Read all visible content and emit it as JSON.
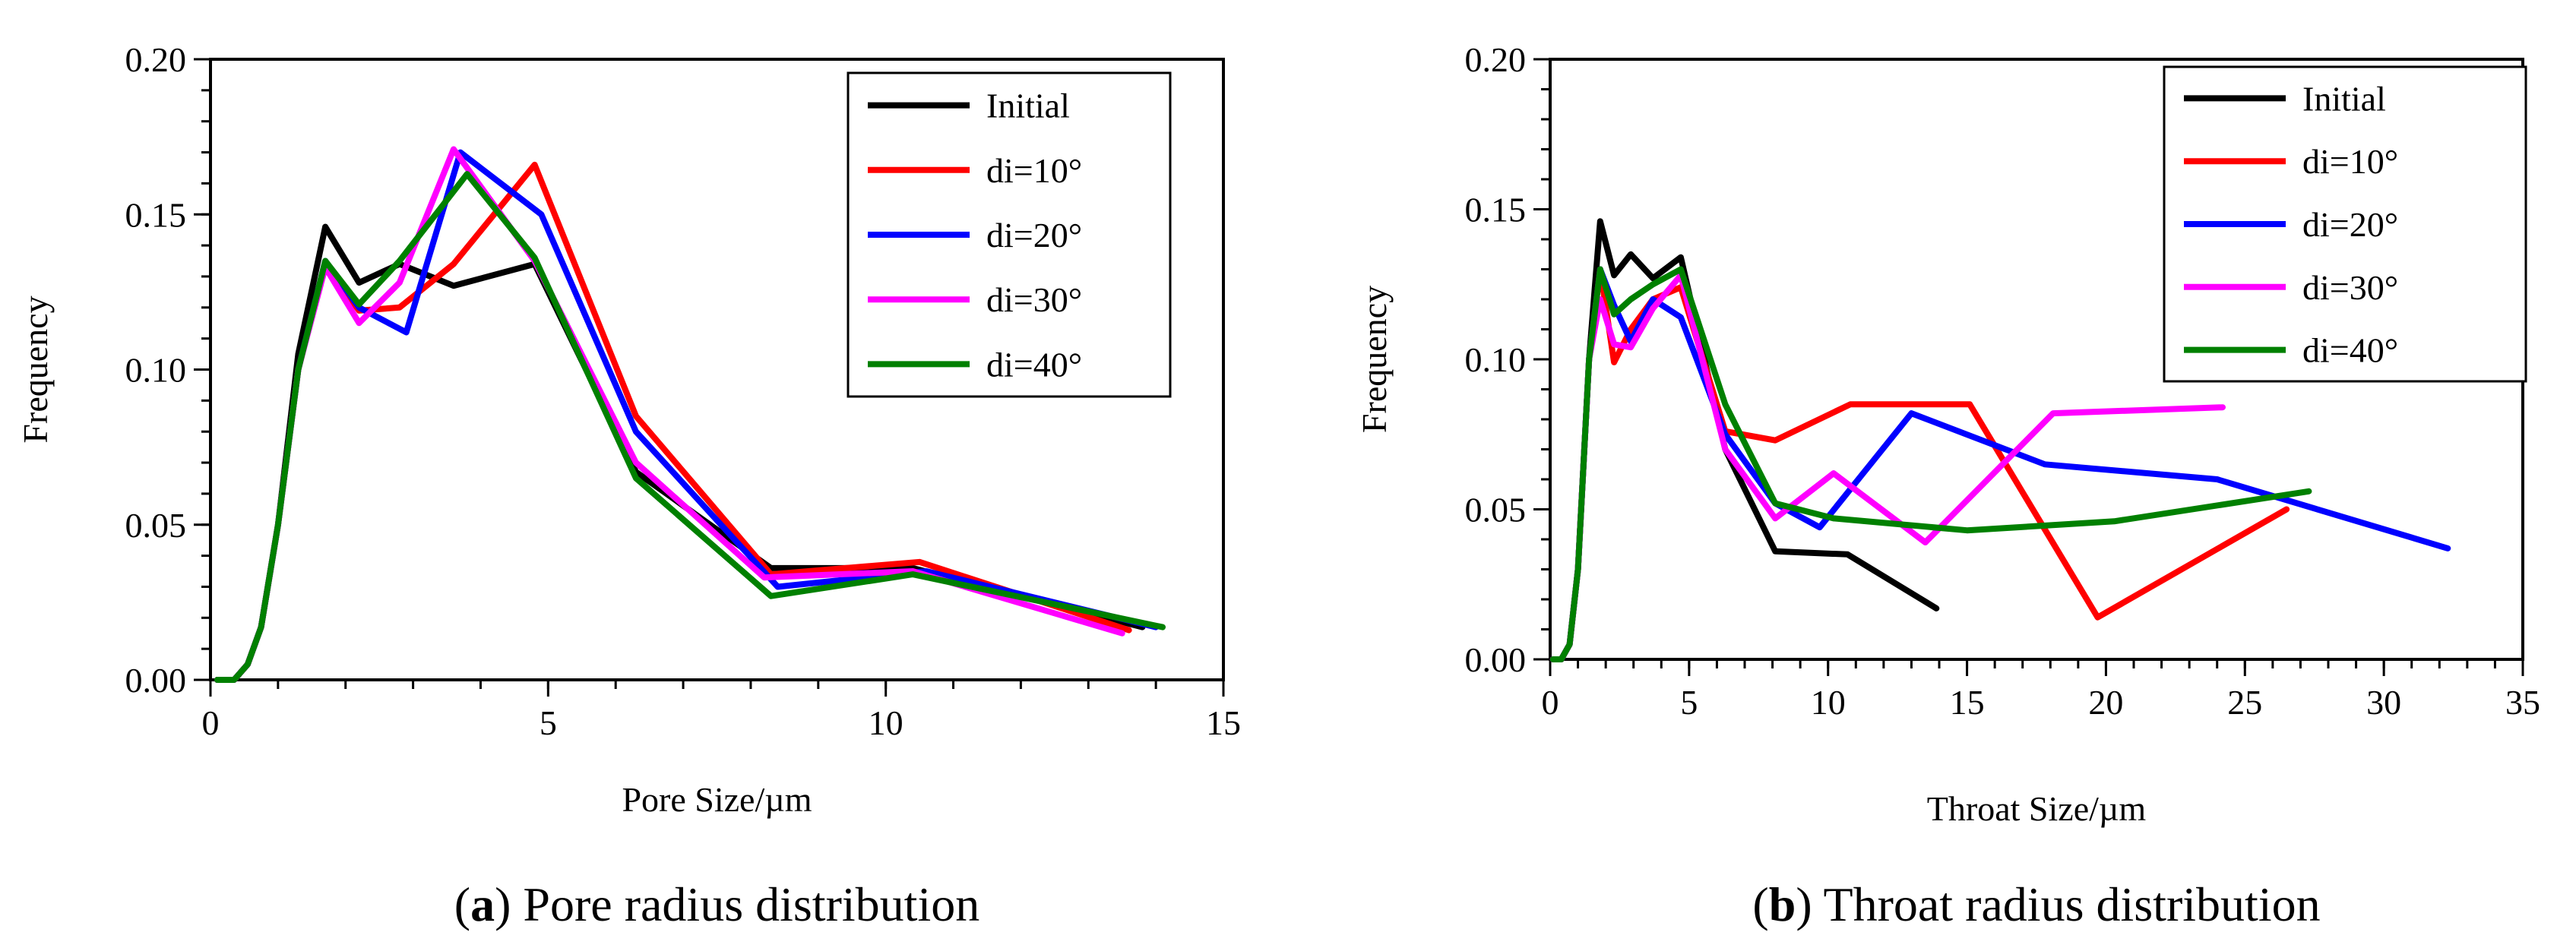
{
  "chart_data": [
    {
      "type": "line",
      "panel": "a",
      "caption_letter": "a",
      "caption_text": " Pore radius distribution",
      "xlabel": "Pore Size/µm",
      "ylabel": "Frequency",
      "xlim": [
        0,
        15
      ],
      "ylim": [
        0,
        0.2
      ],
      "xticks": [
        "0",
        "5",
        "10",
        "15"
      ],
      "yticks": [
        "0.00",
        "0.05",
        "0.10",
        "0.15",
        "0.20"
      ],
      "legend_position": "top-right",
      "series": [
        {
          "name": "Initial",
          "color": "#000000",
          "x": [
            0.1,
            0.35,
            0.55,
            0.75,
            1.0,
            1.3,
            1.7,
            2.2,
            2.8,
            3.6,
            4.8,
            6.3,
            8.3,
            10.4,
            13.8
          ],
          "y": [
            0.0,
            0.0,
            0.005,
            0.017,
            0.05,
            0.105,
            0.146,
            0.128,
            0.134,
            0.127,
            0.134,
            0.067,
            0.036,
            0.036,
            0.017
          ]
        },
        {
          "name": "di=10°",
          "color": "#ff0000",
          "x": [
            0.1,
            0.35,
            0.55,
            0.75,
            1.0,
            1.3,
            1.7,
            2.2,
            2.8,
            3.6,
            4.8,
            6.3,
            8.3,
            10.5,
            13.6
          ],
          "y": [
            0.0,
            0.0,
            0.005,
            0.017,
            0.05,
            0.1,
            0.134,
            0.119,
            0.12,
            0.134,
            0.166,
            0.085,
            0.034,
            0.038,
            0.016
          ]
        },
        {
          "name": "di=20°",
          "color": "#0000ff",
          "x": [
            0.1,
            0.35,
            0.55,
            0.75,
            1.0,
            1.3,
            1.7,
            2.2,
            2.9,
            3.7,
            4.9,
            6.3,
            8.4,
            10.6,
            14.0
          ],
          "y": [
            0.0,
            0.0,
            0.005,
            0.017,
            0.05,
            0.1,
            0.135,
            0.12,
            0.112,
            0.17,
            0.15,
            0.08,
            0.03,
            0.035,
            0.017
          ]
        },
        {
          "name": "di=30°",
          "color": "#ff00ff",
          "x": [
            0.1,
            0.35,
            0.55,
            0.75,
            1.0,
            1.3,
            1.7,
            2.2,
            2.8,
            3.6,
            4.8,
            6.3,
            8.2,
            10.4,
            13.5
          ],
          "y": [
            0.0,
            0.0,
            0.005,
            0.017,
            0.05,
            0.1,
            0.133,
            0.115,
            0.128,
            0.171,
            0.135,
            0.07,
            0.033,
            0.035,
            0.015
          ]
        },
        {
          "name": "di=40°",
          "color": "#008000",
          "x": [
            0.1,
            0.35,
            0.55,
            0.75,
            1.0,
            1.3,
            1.7,
            2.2,
            2.8,
            3.8,
            4.8,
            6.3,
            8.3,
            10.4,
            14.1
          ],
          "y": [
            0.0,
            0.0,
            0.005,
            0.017,
            0.05,
            0.1,
            0.135,
            0.121,
            0.135,
            0.163,
            0.136,
            0.065,
            0.027,
            0.034,
            0.017
          ]
        }
      ]
    },
    {
      "type": "line",
      "panel": "b",
      "caption_letter": "b",
      "caption_text": " Throat radius distribution",
      "xlabel": "Throat Size/µm",
      "ylabel": "Frequency",
      "xlim": [
        0,
        35
      ],
      "ylim": [
        0,
        0.2
      ],
      "xticks": [
        "0",
        "5",
        "10",
        "15",
        "20",
        "25",
        "30",
        "35"
      ],
      "yticks": [
        "0.00",
        "0.05",
        "0.10",
        "0.15",
        "0.20"
      ],
      "legend_position": "top-right",
      "series": [
        {
          "name": "Initial",
          "color": "#000000",
          "x": [
            0.1,
            0.4,
            0.7,
            1.0,
            1.4,
            1.8,
            2.3,
            2.9,
            3.7,
            4.7,
            6.3,
            8.1,
            10.7,
            13.9
          ],
          "y": [
            0.0,
            0.0,
            0.005,
            0.03,
            0.1,
            0.146,
            0.128,
            0.135,
            0.127,
            0.134,
            0.07,
            0.036,
            0.035,
            0.017
          ]
        },
        {
          "name": "di=10°",
          "color": "#ff0000",
          "x": [
            0.1,
            0.4,
            0.7,
            1.0,
            1.4,
            1.8,
            2.3,
            2.9,
            3.7,
            4.7,
            6.3,
            8.1,
            10.8,
            15.1,
            19.7,
            26.5
          ],
          "y": [
            0.0,
            0.0,
            0.005,
            0.03,
            0.1,
            0.13,
            0.099,
            0.11,
            0.12,
            0.124,
            0.076,
            0.073,
            0.085,
            0.085,
            0.014,
            0.05
          ]
        },
        {
          "name": "di=20°",
          "color": "#0000ff",
          "x": [
            0.1,
            0.4,
            0.7,
            1.0,
            1.4,
            1.8,
            2.3,
            2.9,
            3.7,
            4.7,
            6.3,
            8.1,
            9.7,
            13.0,
            17.8,
            24.0,
            32.3
          ],
          "y": [
            0.0,
            0.0,
            0.005,
            0.03,
            0.1,
            0.13,
            0.118,
            0.106,
            0.12,
            0.114,
            0.075,
            0.052,
            0.044,
            0.082,
            0.065,
            0.06,
            0.037
          ]
        },
        {
          "name": "di=30°",
          "color": "#ff00ff",
          "x": [
            0.1,
            0.4,
            0.7,
            1.0,
            1.4,
            1.8,
            2.3,
            2.9,
            3.7,
            4.7,
            6.3,
            8.1,
            10.2,
            13.5,
            18.1,
            24.2
          ],
          "y": [
            0.0,
            0.0,
            0.005,
            0.03,
            0.1,
            0.12,
            0.105,
            0.104,
            0.117,
            0.128,
            0.07,
            0.047,
            0.062,
            0.039,
            0.082,
            0.084
          ]
        },
        {
          "name": "di=40°",
          "color": "#008000",
          "x": [
            0.1,
            0.4,
            0.7,
            1.0,
            1.4,
            1.8,
            2.3,
            2.9,
            3.7,
            4.7,
            6.3,
            8.1,
            10.2,
            15.0,
            20.3,
            27.3
          ],
          "y": [
            0.0,
            0.0,
            0.005,
            0.03,
            0.1,
            0.13,
            0.115,
            0.12,
            0.125,
            0.13,
            0.085,
            0.052,
            0.047,
            0.043,
            0.046,
            0.056
          ]
        }
      ]
    }
  ]
}
